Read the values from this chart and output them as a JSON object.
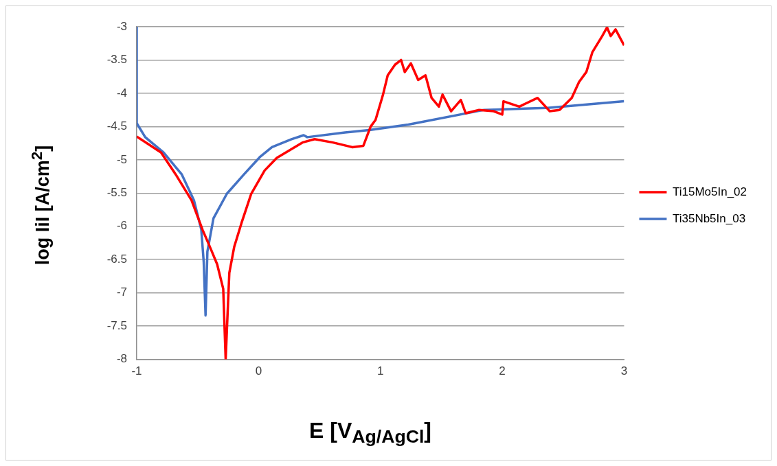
{
  "chart_data": {
    "type": "line",
    "xlabel": "E [V$_{Ag/AgCl}$]",
    "ylabel": "log IiI [A/cm$^{2}$]",
    "xlim": [
      -1,
      3
    ],
    "xticks": [
      -1,
      0,
      1,
      2,
      3
    ],
    "ylim": [
      -8,
      -3
    ],
    "yticks": [
      -8,
      -7.5,
      -7,
      -6.5,
      -6,
      -5.5,
      -5,
      -4.5,
      -4,
      -3.5,
      -3
    ],
    "grid": "y",
    "legend": "right",
    "marker": "none",
    "line_style": "solid",
    "series": [
      {
        "name": "Ti15Mo5In_02",
        "color": "#ff0000",
        "x": [
          -1,
          -0.8,
          -0.68,
          -0.55,
          -0.46,
          -0.39,
          -0.34,
          -0.29,
          -0.27,
          -0.24,
          -0.2,
          -0.14,
          -0.06,
          0.05,
          0.15,
          0.36,
          0.46,
          0.61,
          0.77,
          0.86,
          0.92,
          0.96,
          1.02,
          1.06,
          1.12,
          1.17,
          1.2,
          1.25,
          1.31,
          1.37,
          1.42,
          1.48,
          1.51,
          1.58,
          1.66,
          1.7,
          1.81,
          1.93,
          2.0,
          2.01,
          2.14,
          2.29,
          2.39,
          2.47,
          2.57,
          2.63,
          2.69,
          2.74,
          2.82,
          2.86,
          2.89,
          2.93,
          3.0
        ],
        "values": [
          -4.65,
          -4.89,
          -5.22,
          -5.61,
          -6.05,
          -6.35,
          -6.57,
          -6.94,
          -8,
          -6.7,
          -6.31,
          -5.95,
          -5.51,
          -5.16,
          -4.97,
          -4.74,
          -4.69,
          -4.74,
          -4.81,
          -4.79,
          -4.5,
          -4.4,
          -4.03,
          -3.73,
          -3.57,
          -3.5,
          -3.68,
          -3.55,
          -3.8,
          -3.73,
          -4.07,
          -4.2,
          -4.02,
          -4.27,
          -4.1,
          -4.3,
          -4.25,
          -4.27,
          -4.32,
          -4.12,
          -4.2,
          -4.07,
          -4.27,
          -4.25,
          -4.07,
          -3.83,
          -3.68,
          -3.38,
          -3.14,
          -3.01,
          -3.14,
          -3.04,
          -3.28
        ]
      },
      {
        "name": "Ti35Nb5In_03",
        "color": "#4472c4",
        "x": [
          -1,
          -1,
          -0.93,
          -0.78,
          -0.63,
          -0.53,
          -0.47,
          -0.45,
          -0.435,
          -0.42,
          -0.37,
          -0.26,
          -0.12,
          0.01,
          0.11,
          0.27,
          0.37,
          0.4,
          0.71,
          0.92,
          1.23,
          1.85,
          2.37,
          3.0
        ],
        "values": [
          -3,
          -4.45,
          -4.66,
          -4.89,
          -5.22,
          -5.61,
          -6.05,
          -6.54,
          -7.34,
          -6.38,
          -5.88,
          -5.51,
          -5.22,
          -4.96,
          -4.81,
          -4.69,
          -4.63,
          -4.66,
          -4.59,
          -4.55,
          -4.47,
          -4.25,
          -4.22,
          -4.12
        ]
      }
    ]
  }
}
